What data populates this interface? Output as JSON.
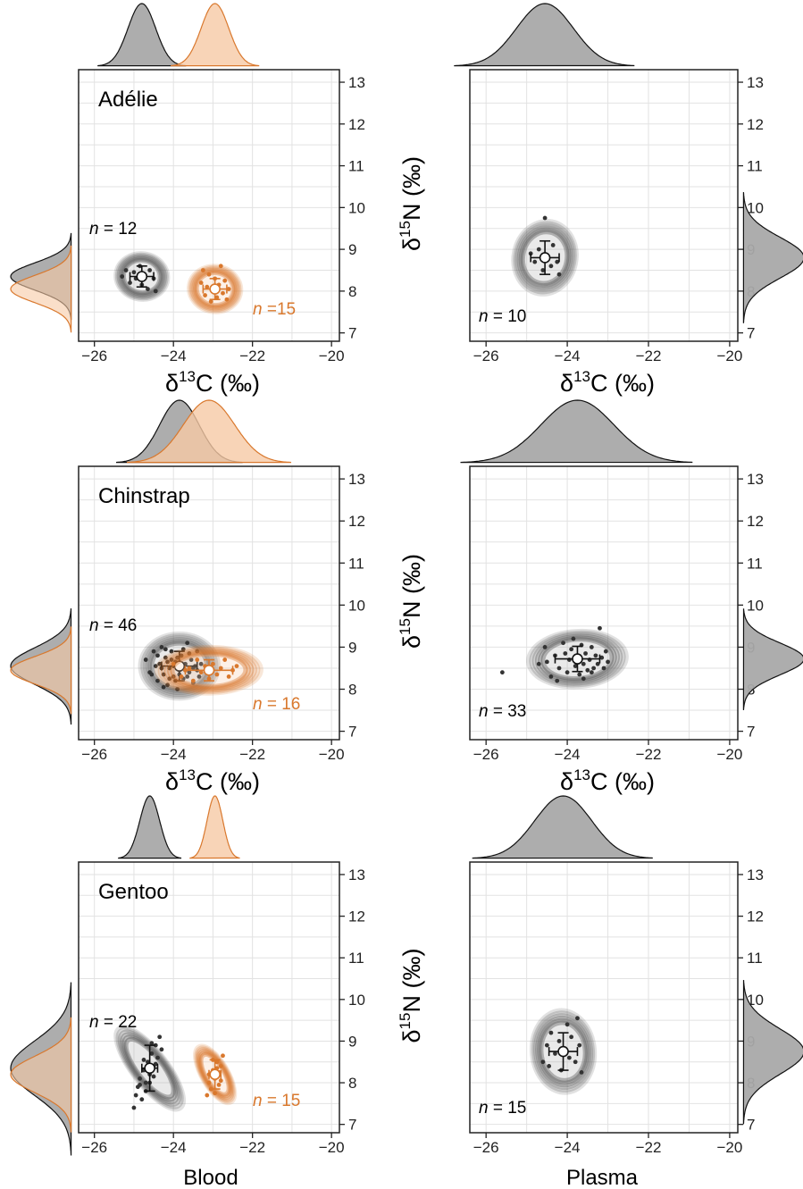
{
  "figure": {
    "column_labels": [
      "Blood",
      "Plasma"
    ],
    "colors": {
      "gray_series": "#595959",
      "orange_series": "#d9782d",
      "gray_fill": "#a9a9a9",
      "orange_fill": "#f6c9a5",
      "frame": "#222222",
      "grid": "#e2e2e2"
    }
  },
  "chart_data": [
    {
      "type": "scatter",
      "species": "Adélie",
      "tissue": "Blood",
      "xlabel": "δ13C (‰)",
      "ylabel": "",
      "xlim": [
        -26.4,
        -19.8
      ],
      "ylim": [
        6.8,
        13.3
      ],
      "xticks": [
        -26,
        -24,
        -22,
        -20
      ],
      "yticks": [
        7,
        8,
        9,
        10,
        11,
        12,
        13
      ],
      "grid": true,
      "series": [
        {
          "color": "gray",
          "n_label": "n = 12",
          "mean": [
            -24.8,
            8.35
          ],
          "sd": [
            0.3,
            0.25
          ],
          "points": [
            [
              -25.2,
              8.5
            ],
            [
              -25.1,
              8.2
            ],
            [
              -25.0,
              8.45
            ],
            [
              -24.95,
              8.3
            ],
            [
              -24.85,
              8.6
            ],
            [
              -24.8,
              8.15
            ],
            [
              -24.75,
              8.4
            ],
            [
              -24.65,
              8.05
            ],
            [
              -24.6,
              8.5
            ],
            [
              -24.5,
              8.3
            ],
            [
              -24.45,
              8.0
            ],
            [
              -25.3,
              8.35
            ]
          ]
        },
        {
          "color": "orange",
          "n_label": "n =15",
          "mean": [
            -22.95,
            8.05
          ],
          "sd": [
            0.3,
            0.25
          ],
          "points": [
            [
              -23.3,
              8.2
            ],
            [
              -23.2,
              7.9
            ],
            [
              -23.15,
              8.1
            ],
            [
              -23.1,
              8.4
            ],
            [
              -23.05,
              7.75
            ],
            [
              -23.0,
              8.0
            ],
            [
              -22.95,
              8.3
            ],
            [
              -22.9,
              7.85
            ],
            [
              -22.85,
              8.15
            ],
            [
              -22.8,
              8.6
            ],
            [
              -22.75,
              7.95
            ],
            [
              -22.7,
              8.25
            ],
            [
              -22.65,
              7.8
            ],
            [
              -22.6,
              8.05
            ],
            [
              -23.25,
              8.5
            ]
          ]
        }
      ]
    },
    {
      "type": "scatter",
      "species": "",
      "tissue": "Plasma",
      "xlabel": "δ13C (‰)",
      "ylabel": "δ15N (‰)",
      "xlim": [
        -26.4,
        -19.8
      ],
      "ylim": [
        6.8,
        13.3
      ],
      "xticks": [
        -26,
        -24,
        -22,
        -20
      ],
      "yticks": [
        7,
        8,
        9,
        10,
        11,
        12,
        13
      ],
      "grid": true,
      "series": [
        {
          "color": "gray",
          "n_label": "n = 10",
          "mean": [
            -24.55,
            8.8
          ],
          "sd": [
            0.35,
            0.4
          ],
          "points": [
            [
              -24.9,
              8.9
            ],
            [
              -24.8,
              8.7
            ],
            [
              -24.7,
              9.0
            ],
            [
              -24.6,
              8.5
            ],
            [
              -24.55,
              9.75
            ],
            [
              -24.5,
              8.8
            ],
            [
              -24.4,
              8.6
            ],
            [
              -24.35,
              9.1
            ],
            [
              -24.25,
              8.7
            ],
            [
              -24.2,
              8.4
            ]
          ]
        }
      ]
    },
    {
      "type": "scatter",
      "species": "Chinstrap",
      "tissue": "Blood",
      "xlabel": "δ13C (‰)",
      "ylabel": "",
      "xlim": [
        -26.4,
        -19.8
      ],
      "ylim": [
        6.8,
        13.3
      ],
      "xticks": [
        -26,
        -24,
        -22,
        -20
      ],
      "yticks": [
        7,
        8,
        9,
        10,
        11,
        12,
        13
      ],
      "grid": true,
      "series": [
        {
          "color": "gray",
          "n_label": "n = 46",
          "mean": [
            -23.85,
            8.55
          ],
          "sd": [
            0.45,
            0.35
          ],
          "points": [
            [
              -24.7,
              8.7
            ],
            [
              -24.6,
              8.4
            ],
            [
              -24.5,
              8.9
            ],
            [
              -24.4,
              8.2
            ],
            [
              -24.35,
              8.6
            ],
            [
              -24.3,
              9.0
            ],
            [
              -24.25,
              8.35
            ],
            [
              -24.2,
              8.75
            ],
            [
              -24.15,
              8.1
            ],
            [
              -24.1,
              8.5
            ],
            [
              -24.05,
              8.9
            ],
            [
              -24.0,
              8.3
            ],
            [
              -23.95,
              8.65
            ],
            [
              -23.9,
              8.0
            ],
            [
              -23.85,
              8.45
            ],
            [
              -23.8,
              8.8
            ],
            [
              -23.75,
              8.25
            ],
            [
              -23.7,
              8.6
            ],
            [
              -23.65,
              9.1
            ],
            [
              -23.6,
              8.4
            ],
            [
              -23.55,
              8.7
            ],
            [
              -23.5,
              8.15
            ],
            [
              -23.45,
              8.55
            ],
            [
              -23.4,
              8.9
            ],
            [
              -23.35,
              8.3
            ],
            [
              -23.3,
              8.6
            ],
            [
              -24.45,
              8.55
            ],
            [
              -24.2,
              8.95
            ],
            [
              -23.95,
              8.2
            ],
            [
              -23.7,
              8.45
            ],
            [
              -24.05,
              8.7
            ],
            [
              -23.8,
              8.6
            ],
            [
              -24.3,
              8.5
            ],
            [
              -23.6,
              8.85
            ],
            [
              -24.1,
              8.25
            ],
            [
              -23.9,
              8.75
            ],
            [
              -24.55,
              8.35
            ],
            [
              -23.5,
              8.5
            ],
            [
              -24.0,
              8.55
            ],
            [
              -23.75,
              8.95
            ],
            [
              -24.25,
              8.05
            ],
            [
              -23.4,
              8.45
            ],
            [
              -24.15,
              8.65
            ],
            [
              -23.85,
              8.35
            ],
            [
              -24.4,
              8.8
            ],
            [
              -23.65,
              8.3
            ]
          ]
        },
        {
          "color": "orange",
          "n_label": "n = 16",
          "mean": [
            -23.1,
            8.45
          ],
          "sd": [
            0.6,
            0.25
          ],
          "points": [
            [
              -24.0,
              8.6
            ],
            [
              -23.8,
              8.3
            ],
            [
              -23.6,
              8.5
            ],
            [
              -23.5,
              8.2
            ],
            [
              -23.4,
              8.7
            ],
            [
              -23.3,
              8.4
            ],
            [
              -23.2,
              8.55
            ],
            [
              -23.1,
              8.25
            ],
            [
              -23.0,
              8.6
            ],
            [
              -22.9,
              8.35
            ],
            [
              -22.8,
              8.5
            ],
            [
              -22.7,
              8.7
            ],
            [
              -22.6,
              8.3
            ],
            [
              -22.5,
              8.45
            ],
            [
              -22.4,
              8.55
            ],
            [
              -23.7,
              8.45
            ]
          ]
        }
      ]
    },
    {
      "type": "scatter",
      "species": "",
      "tissue": "Plasma",
      "xlabel": "δ13C (‰)",
      "ylabel": "δ15N (‰)",
      "xlim": [
        -26.4,
        -19.8
      ],
      "ylim": [
        6.8,
        13.3
      ],
      "xticks": [
        -26,
        -24,
        -22,
        -20
      ],
      "yticks": [
        7,
        8,
        9,
        10,
        11,
        12,
        13
      ],
      "grid": true,
      "series": [
        {
          "color": "gray",
          "n_label": "n = 33",
          "mean": [
            -23.75,
            8.72
          ],
          "sd": [
            0.55,
            0.3
          ],
          "points": [
            [
              -25.6,
              8.4
            ],
            [
              -24.7,
              8.6
            ],
            [
              -24.55,
              9.0
            ],
            [
              -24.4,
              8.3
            ],
            [
              -24.3,
              8.8
            ],
            [
              -24.2,
              8.5
            ],
            [
              -24.1,
              9.1
            ],
            [
              -24.0,
              8.4
            ],
            [
              -23.95,
              8.7
            ],
            [
              -23.9,
              8.95
            ],
            [
              -23.8,
              8.55
            ],
            [
              -23.75,
              8.8
            ],
            [
              -23.7,
              8.35
            ],
            [
              -23.65,
              9.05
            ],
            [
              -23.6,
              8.6
            ],
            [
              -23.55,
              8.85
            ],
            [
              -23.5,
              8.45
            ],
            [
              -23.45,
              8.7
            ],
            [
              -23.4,
              9.0
            ],
            [
              -23.35,
              8.5
            ],
            [
              -23.3,
              8.8
            ],
            [
              -23.25,
              8.6
            ],
            [
              -23.2,
              9.45
            ],
            [
              -23.15,
              8.75
            ],
            [
              -23.1,
              8.5
            ],
            [
              -23.05,
              8.9
            ],
            [
              -24.25,
              8.2
            ],
            [
              -23.85,
              9.2
            ],
            [
              -24.5,
              8.65
            ],
            [
              -23.6,
              8.25
            ],
            [
              -23.0,
              8.65
            ],
            [
              -24.05,
              8.85
            ],
            [
              -23.4,
              8.4
            ]
          ]
        }
      ]
    },
    {
      "type": "scatter",
      "species": "Gentoo",
      "tissue": "Blood",
      "xlabel": "",
      "ylabel": "",
      "xlim": [
        -26.4,
        -19.8
      ],
      "ylim": [
        6.8,
        13.3
      ],
      "xticks": [
        -26,
        -24,
        -22,
        -20
      ],
      "yticks": [
        7,
        8,
        9,
        10,
        11,
        12,
        13
      ],
      "grid": true,
      "series": [
        {
          "color": "gray",
          "n_label": "n = 22",
          "mean": [
            -24.6,
            8.35
          ],
          "sd": [
            0.2,
            0.55
          ],
          "points": [
            [
              -25.0,
              7.4
            ],
            [
              -24.95,
              7.7
            ],
            [
              -24.9,
              7.9
            ],
            [
              -24.85,
              8.1
            ],
            [
              -24.8,
              7.6
            ],
            [
              -24.75,
              8.3
            ],
            [
              -24.7,
              8.0
            ],
            [
              -24.65,
              8.5
            ],
            [
              -24.6,
              8.2
            ],
            [
              -24.55,
              8.7
            ],
            [
              -24.5,
              8.4
            ],
            [
              -24.45,
              8.9
            ],
            [
              -24.4,
              8.6
            ],
            [
              -24.35,
              9.1
            ],
            [
              -24.3,
              8.8
            ],
            [
              -24.7,
              7.8
            ],
            [
              -24.6,
              8.0
            ],
            [
              -24.5,
              8.15
            ],
            [
              -24.45,
              8.45
            ],
            [
              -24.75,
              8.55
            ],
            [
              -24.55,
              8.95
            ],
            [
              -24.85,
              7.95
            ]
          ]
        },
        {
          "color": "orange",
          "n_label": "n = 15",
          "mean": [
            -22.95,
            8.2
          ],
          "sd": [
            0.15,
            0.35
          ],
          "points": [
            [
              -23.15,
              7.7
            ],
            [
              -23.1,
              8.0
            ],
            [
              -23.05,
              7.85
            ],
            [
              -23.0,
              8.3
            ],
            [
              -22.95,
              8.1
            ],
            [
              -22.9,
              8.5
            ],
            [
              -22.85,
              7.95
            ],
            [
              -22.8,
              8.4
            ],
            [
              -22.75,
              8.65
            ],
            [
              -23.1,
              8.2
            ],
            [
              -22.95,
              7.75
            ],
            [
              -22.85,
              8.25
            ],
            [
              -23.0,
              8.55
            ],
            [
              -22.8,
              8.05
            ],
            [
              -22.9,
              8.35
            ]
          ]
        }
      ]
    },
    {
      "type": "scatter",
      "species": "",
      "tissue": "Plasma",
      "xlabel": "",
      "ylabel": "δ15N (‰)",
      "xlim": [
        -26.4,
        -19.8
      ],
      "ylim": [
        6.8,
        13.3
      ],
      "xticks": [
        -26,
        -24,
        -22,
        -20
      ],
      "yticks": [
        7,
        8,
        9,
        10,
        11,
        12,
        13
      ],
      "grid": true,
      "series": [
        {
          "color": "gray",
          "n_label": "n = 15",
          "mean": [
            -24.1,
            8.75
          ],
          "sd": [
            0.35,
            0.45
          ],
          "points": [
            [
              -24.6,
              8.5
            ],
            [
              -24.5,
              8.9
            ],
            [
              -24.45,
              8.4
            ],
            [
              -24.4,
              9.2
            ],
            [
              -24.3,
              8.7
            ],
            [
              -24.2,
              9.0
            ],
            [
              -24.15,
              8.3
            ],
            [
              -24.1,
              8.8
            ],
            [
              -24.0,
              9.4
            ],
            [
              -23.95,
              8.6
            ],
            [
              -23.9,
              9.1
            ],
            [
              -23.8,
              8.5
            ],
            [
              -23.75,
              9.55
            ],
            [
              -23.7,
              8.9
            ],
            [
              -23.65,
              8.25
            ]
          ]
        }
      ]
    }
  ]
}
